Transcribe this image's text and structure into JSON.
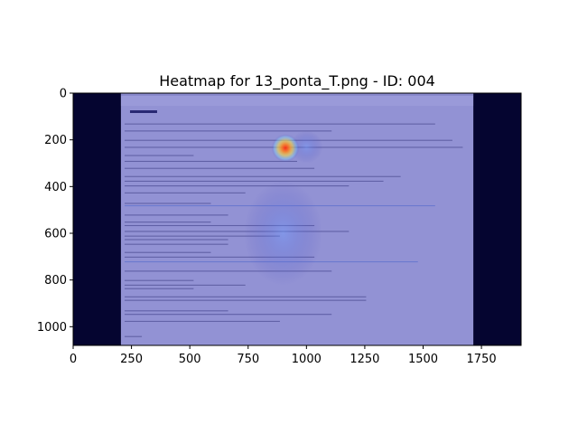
{
  "chart_data": {
    "type": "heatmap",
    "title": "Heatmap for 13_ponta_T.png - ID: 004",
    "xlabel": "",
    "ylabel": "",
    "xlim": [
      0,
      1920
    ],
    "ylim": [
      1080,
      0
    ],
    "x_ticks": [
      0,
      250,
      500,
      750,
      1000,
      1250,
      1500,
      1750
    ],
    "y_ticks": [
      0,
      200,
      400,
      600,
      800,
      1000
    ],
    "background_image": {
      "description_visible": "email client screenshot with Japanese text",
      "content_x_range": [
        205,
        1715
      ],
      "content_y_range": [
        0,
        1080
      ]
    },
    "hotspots": [
      {
        "x": 910,
        "y": 235,
        "intensity": 1.0,
        "color": "#ff3b1f"
      },
      {
        "x": 900,
        "y": 600,
        "intensity": 0.25,
        "color": "#5a8cff"
      },
      {
        "x": 1000,
        "y": 230,
        "intensity": 0.35,
        "color": "#7fd3ff"
      }
    ],
    "colors": {
      "overlay": "#3a3ab8",
      "dark_border": "#050530",
      "hot": "#ff3b1f",
      "warm": "#ffd23a"
    }
  }
}
